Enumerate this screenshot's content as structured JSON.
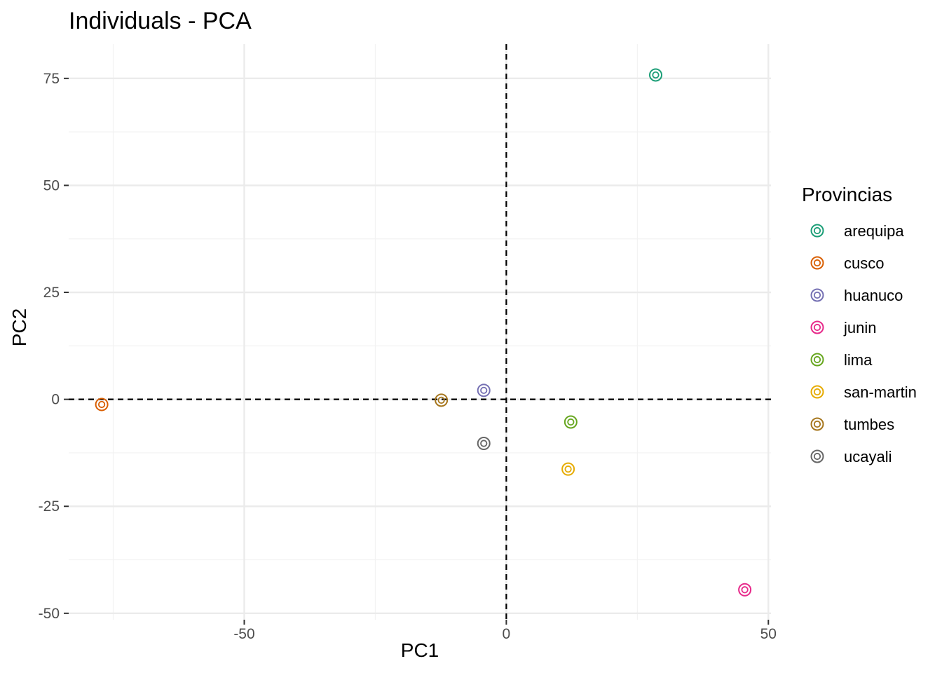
{
  "chart_data": {
    "type": "scatter",
    "title": "Individuals - PCA",
    "xlabel": "PC1",
    "ylabel": "PC2",
    "xlim": [
      -83.5,
      50.5
    ],
    "ylim": [
      -51.5,
      83.0
    ],
    "x_ticks": [
      -50,
      0,
      50
    ],
    "y_ticks": [
      -50,
      -25,
      0,
      25,
      50,
      75
    ],
    "grid": true,
    "reference_lines": {
      "x": 0,
      "y": 0,
      "style": "dashed"
    },
    "legend": {
      "title": "Provincias",
      "position": "right"
    },
    "series": [
      {
        "name": "arequipa",
        "color": "#1b9e77",
        "x": 28.5,
        "y": 75.8
      },
      {
        "name": "cusco",
        "color": "#d95f02",
        "x": -77.2,
        "y": -1.2
      },
      {
        "name": "huanuco",
        "color": "#7570b3",
        "x": -4.3,
        "y": 2.1
      },
      {
        "name": "junin",
        "color": "#e7298a",
        "x": 45.5,
        "y": -44.5
      },
      {
        "name": "lima",
        "color": "#66a61e",
        "x": 12.3,
        "y": -5.3
      },
      {
        "name": "san-martin",
        "color": "#e6ab02",
        "x": 11.8,
        "y": -16.3
      },
      {
        "name": "tumbes",
        "color": "#a6761d",
        "x": -12.4,
        "y": -0.2
      },
      {
        "name": "ucayali",
        "color": "#666666",
        "x": -4.3,
        "y": -10.3
      }
    ]
  }
}
